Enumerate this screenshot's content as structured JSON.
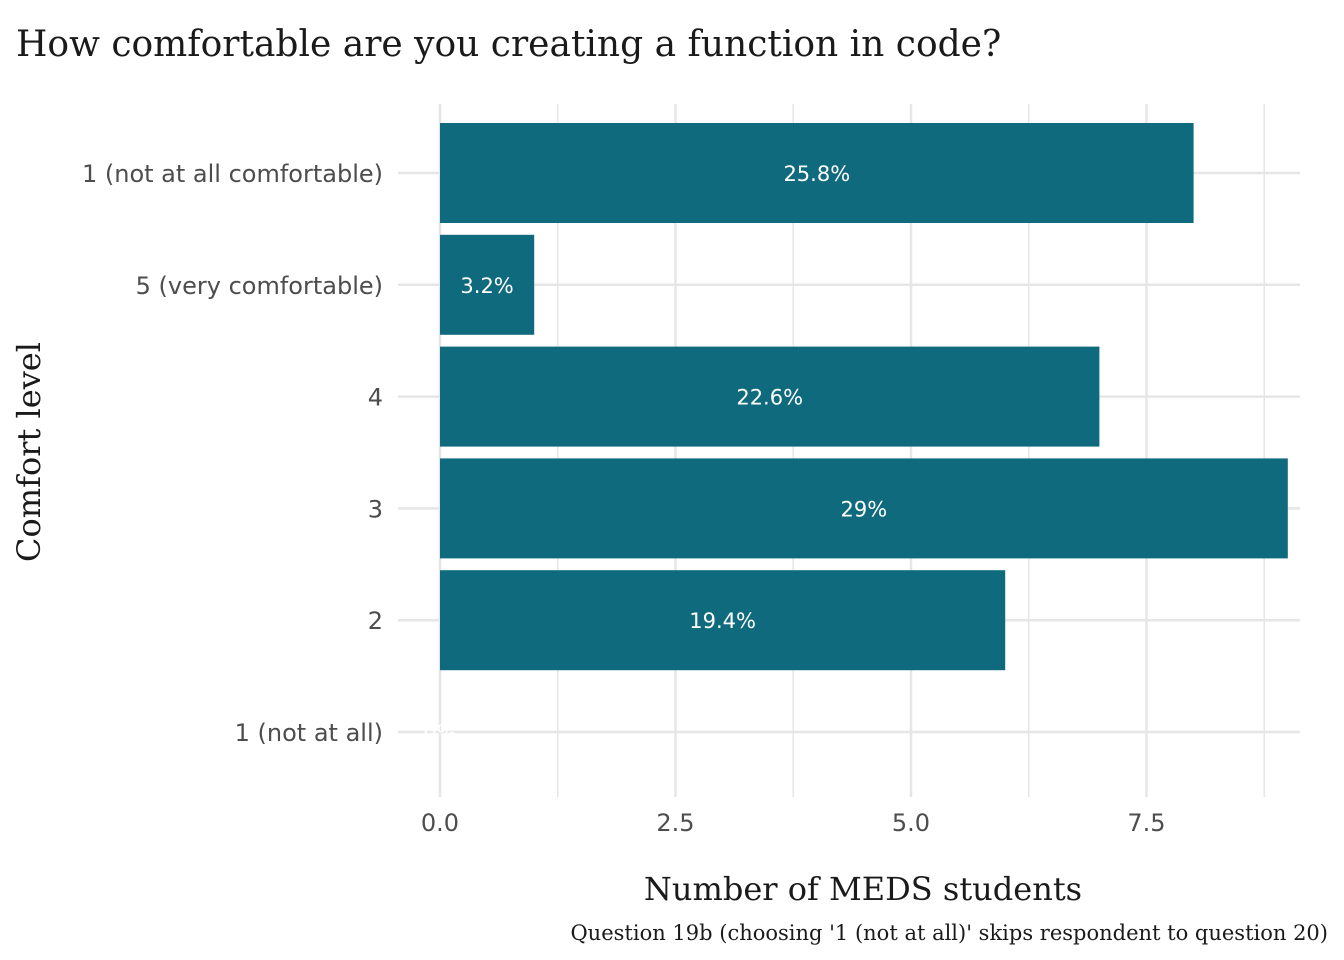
{
  "chart_data": {
    "type": "bar",
    "orientation": "horizontal",
    "title": "How comfortable are you creating a function in code?",
    "xlabel": "Number of MEDS students",
    "ylabel": "Comfort level",
    "caption": "Question 19b (choosing '1 (not at all)' skips respondent to question 20)",
    "categories": [
      "1 (not at all comfortable)",
      "5 (very comfortable)",
      "4",
      "3",
      "2",
      "1 (not at all)"
    ],
    "values": [
      8,
      1,
      7,
      9,
      6,
      0
    ],
    "value_labels": [
      "25.8%",
      "3.2%",
      "22.6%",
      "29%",
      "19.4%",
      "0%"
    ],
    "x_ticks": [
      "0.0",
      "2.5",
      "5.0",
      "7.5"
    ],
    "xlim": [
      0,
      9
    ],
    "grid": true,
    "legend": "none",
    "colors": {
      "bar": "#0f6a7d",
      "grid": "#e6e6e6",
      "text": "#1a1a1a",
      "tick_text": "#4d4d4d",
      "label_text": "#ffffff"
    }
  }
}
